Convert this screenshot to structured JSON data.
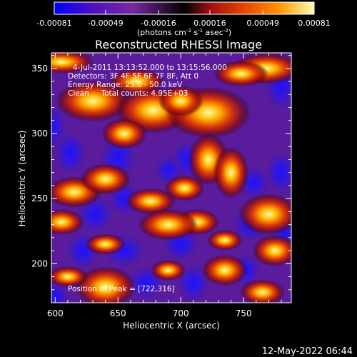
{
  "chart_data": {
    "type": "heatmap",
    "title": "Reconstructed RHESSI Image",
    "xlabel": "Heliocentric X (arcsec)",
    "ylabel": "Heliocentric Y (arcsec)",
    "xlim": [
      597,
      788
    ],
    "ylim": [
      170,
      362
    ],
    "xticks": [
      600,
      650,
      700,
      750
    ],
    "yticks": [
      200,
      250,
      300,
      350
    ],
    "colorbar": {
      "range": [
        -0.00081,
        0.00081
      ],
      "ticks": [
        -0.00081,
        -0.00049,
        -0.00016,
        0.00016,
        0.00049,
        0.00081
      ],
      "tick_labels": [
        "-0.00081",
        "-0.00049",
        "-0.00016",
        "0.00016",
        "0.00049",
        "0.00081"
      ],
      "unit_main": "(photons cm",
      "unit_sup1": "-2",
      "unit_mid1": " s",
      "unit_sup2": "-1",
      "unit_mid2": " asec",
      "unit_sup3": "-2",
      "unit_end": ")",
      "colormap": [
        "#0000ff",
        "#5010c0",
        "#7828a0",
        "#000000",
        "#a01010",
        "#e04000",
        "#ff9000",
        "#ffffb0"
      ]
    },
    "annotations": [
      "4-Jul-2011 13:13:52.000 to 13:15:56.000",
      "Detectors: 3F 4F 5F 6F 7F 8F, Att 0",
      "Energy Range: 25.0 - 50.0 keV",
      "Clean     Total counts: 4.95E+03"
    ],
    "peak_label": "Position of Peak = [722,316]",
    "peak": [
      722,
      316
    ],
    "bright_regions": [
      {
        "x": 605,
        "y": 355,
        "w": 26,
        "h": 9
      },
      {
        "x": 630,
        "y": 325,
        "w": 30,
        "h": 16
      },
      {
        "x": 678,
        "y": 318,
        "w": 30,
        "h": 18
      },
      {
        "x": 722,
        "y": 316,
        "w": 34,
        "h": 20
      },
      {
        "x": 665,
        "y": 340,
        "w": 22,
        "h": 10
      },
      {
        "x": 700,
        "y": 325,
        "w": 18,
        "h": 12
      },
      {
        "x": 768,
        "y": 350,
        "w": 28,
        "h": 12
      },
      {
        "x": 748,
        "y": 346,
        "w": 22,
        "h": 10
      },
      {
        "x": 722,
        "y": 280,
        "w": 16,
        "h": 20
      },
      {
        "x": 740,
        "y": 270,
        "w": 14,
        "h": 20
      },
      {
        "x": 615,
        "y": 255,
        "w": 22,
        "h": 12
      },
      {
        "x": 640,
        "y": 265,
        "w": 20,
        "h": 12
      },
      {
        "x": 605,
        "y": 232,
        "w": 18,
        "h": 10
      },
      {
        "x": 676,
        "y": 248,
        "w": 20,
        "h": 10
      },
      {
        "x": 655,
        "y": 300,
        "w": 18,
        "h": 12
      },
      {
        "x": 703,
        "y": 258,
        "w": 16,
        "h": 10
      },
      {
        "x": 713,
        "y": 232,
        "w": 18,
        "h": 10
      },
      {
        "x": 690,
        "y": 230,
        "w": 24,
        "h": 12
      },
      {
        "x": 770,
        "y": 238,
        "w": 24,
        "h": 16
      },
      {
        "x": 640,
        "y": 215,
        "w": 16,
        "h": 8
      },
      {
        "x": 640,
        "y": 182,
        "w": 24,
        "h": 16
      },
      {
        "x": 690,
        "y": 195,
        "w": 14,
        "h": 8
      },
      {
        "x": 735,
        "y": 195,
        "w": 18,
        "h": 12
      },
      {
        "x": 775,
        "y": 210,
        "w": 18,
        "h": 12
      },
      {
        "x": 765,
        "y": 178,
        "w": 18,
        "h": 10
      },
      {
        "x": 610,
        "y": 190,
        "w": 16,
        "h": 8
      },
      {
        "x": 735,
        "y": 218,
        "w": 14,
        "h": 8
      }
    ],
    "dim_regions": [
      {
        "x": 598,
        "y": 305,
        "w": 12,
        "h": 18
      },
      {
        "x": 612,
        "y": 285,
        "w": 14,
        "h": 18
      },
      {
        "x": 650,
        "y": 282,
        "w": 16,
        "h": 18
      },
      {
        "x": 742,
        "y": 318,
        "w": 14,
        "h": 12
      },
      {
        "x": 780,
        "y": 336,
        "w": 14,
        "h": 20
      },
      {
        "x": 705,
        "y": 280,
        "w": 14,
        "h": 16
      },
      {
        "x": 758,
        "y": 262,
        "w": 14,
        "h": 14
      },
      {
        "x": 780,
        "y": 270,
        "w": 14,
        "h": 18
      },
      {
        "x": 632,
        "y": 238,
        "w": 16,
        "h": 16
      },
      {
        "x": 655,
        "y": 250,
        "w": 14,
        "h": 14
      },
      {
        "x": 690,
        "y": 272,
        "w": 12,
        "h": 12
      },
      {
        "x": 622,
        "y": 210,
        "w": 14,
        "h": 16
      },
      {
        "x": 655,
        "y": 210,
        "w": 18,
        "h": 14
      },
      {
        "x": 700,
        "y": 215,
        "w": 16,
        "h": 14
      },
      {
        "x": 672,
        "y": 185,
        "w": 16,
        "h": 14
      },
      {
        "x": 710,
        "y": 185,
        "w": 14,
        "h": 16
      },
      {
        "x": 755,
        "y": 230,
        "w": 14,
        "h": 14
      },
      {
        "x": 782,
        "y": 225,
        "w": 12,
        "h": 14
      },
      {
        "x": 752,
        "y": 195,
        "w": 12,
        "h": 14
      },
      {
        "x": 600,
        "y": 175,
        "w": 12,
        "h": 12
      }
    ]
  },
  "footer": {
    "timestamp": "12-May-2022 06:44"
  }
}
